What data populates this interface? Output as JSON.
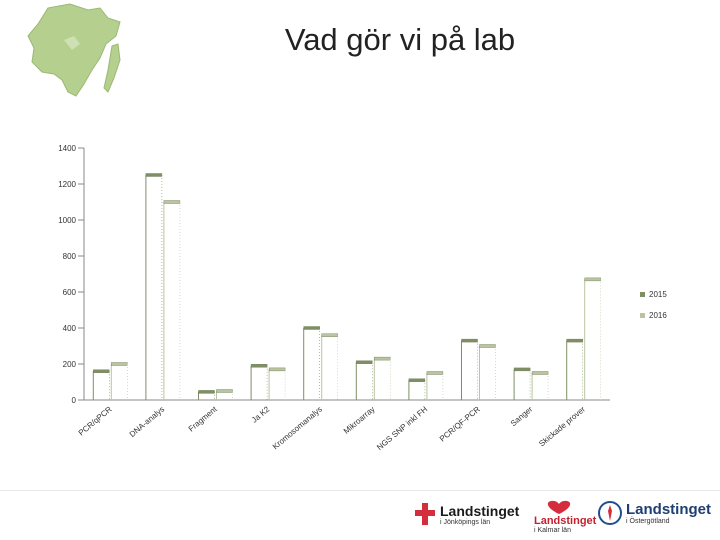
{
  "header": {
    "title": "Vad gör vi på lab"
  },
  "legend": {
    "items": [
      {
        "label": "2015",
        "color": "#7f8f64"
      },
      {
        "label": "2016",
        "color": "#b9c4a0"
      }
    ]
  },
  "chart_data": {
    "type": "bar",
    "categories": [
      "PCR/qPCR",
      "DNA-analys",
      "Fragment",
      "Ja K2",
      "Kromosomanalys",
      "Mikroarray",
      "NGS SNP inkl FH",
      "PCR/QF-PCR",
      "Sanger",
      "Skickade prover"
    ],
    "series": [
      {
        "name": "2015",
        "values": [
          160,
          1250,
          45,
          190,
          400,
          210,
          110,
          330,
          170,
          330
        ]
      },
      {
        "name": "2016",
        "values": [
          200,
          1100,
          50,
          170,
          360,
          230,
          150,
          300,
          150,
          670
        ]
      }
    ],
    "yticks": [
      0,
      200,
      400,
      600,
      800,
      1000,
      1200,
      1400
    ],
    "ylim": [
      0,
      1400
    ],
    "grid": false,
    "legend_position": "right"
  },
  "logos": {
    "jonkoping": {
      "name": "Landstinget",
      "sub": "i Jönköpings län"
    },
    "kalmar": {
      "name": "Landstinget",
      "sub": "i Kalmar län"
    },
    "ostergotland": {
      "name": "Landstinget",
      "sub": "i Östergötland"
    }
  }
}
